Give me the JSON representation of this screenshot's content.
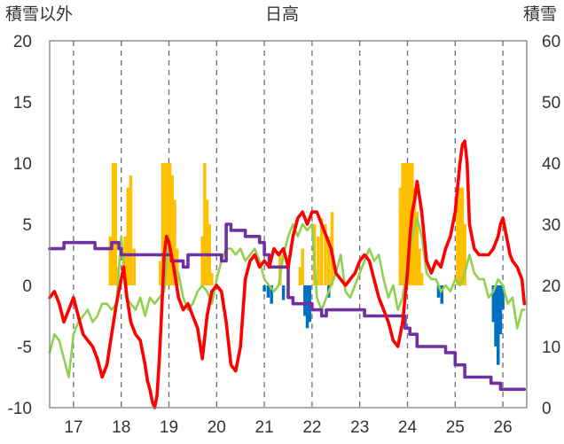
{
  "chart_data": {
    "type": "line",
    "title": "日高",
    "left_axis_label": "積雪以外",
    "right_axis_label": "積雪",
    "y_left": {
      "min": -10,
      "max": 20,
      "ticks": [
        20,
        15,
        10,
        5,
        0,
        -5,
        -10
      ]
    },
    "y_right": {
      "min": 0,
      "max": 60,
      "ticks": [
        60,
        50,
        40,
        30,
        20,
        10,
        0
      ]
    },
    "x": {
      "min": 16.5,
      "max": 26.5,
      "ticks": [
        17,
        18,
        19,
        20,
        21,
        22,
        23,
        24,
        25,
        26
      ]
    },
    "grid": {
      "vertical": "dashed",
      "horizontal": "none"
    },
    "colors": {
      "red": "#ff0000",
      "green": "#92d050",
      "purple": "#7030a0",
      "orange": "#ffc000",
      "blue": "#0070c0"
    },
    "series": [
      {
        "color": "red",
        "axis": "left",
        "x": [
          16.5,
          16.6,
          16.7,
          16.8,
          16.9,
          17.0,
          17.1,
          17.2,
          17.3,
          17.4,
          17.5,
          17.6,
          17.7,
          17.8,
          17.9,
          18.05,
          18.12,
          18.2,
          18.3,
          18.4,
          18.5,
          18.55,
          18.6,
          18.65,
          18.7,
          18.75,
          18.8,
          18.85,
          18.9,
          18.95,
          19.0,
          19.05,
          19.1,
          19.2,
          19.3,
          19.4,
          19.5,
          19.6,
          19.7,
          19.8,
          19.9,
          20.0,
          20.1,
          20.2,
          20.3,
          20.4,
          20.5,
          20.6,
          20.7,
          20.8,
          20.9,
          21.0,
          21.1,
          21.2,
          21.3,
          21.4,
          21.5,
          21.6,
          21.7,
          21.8,
          21.9,
          22.0,
          22.1,
          22.2,
          22.3,
          22.4,
          22.5,
          22.6,
          22.7,
          22.8,
          22.9,
          23.0,
          23.1,
          23.2,
          23.3,
          23.4,
          23.5,
          23.6,
          23.7,
          23.8,
          23.9,
          24.0,
          24.05,
          24.1,
          24.15,
          24.2,
          24.3,
          24.4,
          24.5,
          24.6,
          24.7,
          24.8,
          24.9,
          25.0,
          25.05,
          25.1,
          25.15,
          25.2,
          25.25,
          25.3,
          25.4,
          25.5,
          25.6,
          25.7,
          25.8,
          25.9,
          25.95,
          26.0,
          26.05,
          26.1,
          26.15,
          26.2,
          26.3,
          26.4,
          26.45
        ],
        "y": [
          -1.0,
          -0.5,
          -1.5,
          -3.0,
          -2.0,
          -1.0,
          -2.5,
          -4.0,
          -4.5,
          -5.0,
          -6.0,
          -7.5,
          -6.5,
          -4.0,
          -1.5,
          1.5,
          -1.0,
          -3.0,
          -4.0,
          -4.5,
          -6.5,
          -7.8,
          -8.5,
          -9.5,
          -10.0,
          -9.0,
          -6.0,
          -2.0,
          2.5,
          4.0,
          3.5,
          2.5,
          1.5,
          -1.0,
          -2.0,
          -1.5,
          -2.5,
          -3.5,
          -6.0,
          -2.5,
          -0.5,
          0.0,
          -0.5,
          -3.0,
          -6.5,
          -7.0,
          -5.0,
          0.5,
          2.0,
          2.5,
          1.5,
          2.0,
          1.5,
          3.0,
          2.5,
          3.0,
          1.5,
          4.0,
          5.5,
          6.0,
          5.0,
          6.0,
          6.0,
          5.0,
          4.0,
          3.0,
          1.0,
          0.5,
          0.0,
          0.5,
          1.0,
          2.0,
          2.5,
          2.0,
          0.5,
          -1.0,
          -2.0,
          -3.0,
          -4.5,
          -5.0,
          -3.0,
          1.0,
          4.0,
          6.0,
          7.0,
          8.5,
          6.0,
          2.0,
          1.0,
          2.0,
          1.5,
          3.0,
          4.0,
          6.0,
          8.0,
          10.0,
          11.5,
          11.8,
          10.0,
          5.0,
          3.0,
          2.5,
          2.5,
          2.5,
          3.0,
          4.0,
          5.0,
          5.5,
          4.5,
          3.5,
          2.5,
          2.0,
          1.5,
          0.5,
          -1.5
        ]
      },
      {
        "color": "green",
        "axis": "left",
        "x": [
          16.5,
          16.6,
          16.7,
          16.8,
          16.9,
          17.0,
          17.1,
          17.2,
          17.3,
          17.4,
          17.5,
          17.6,
          17.7,
          17.8,
          17.9,
          18.0,
          18.1,
          18.2,
          18.3,
          18.4,
          18.5,
          18.6,
          18.7,
          18.8,
          18.9,
          19.0,
          19.1,
          19.2,
          19.3,
          19.4,
          19.5,
          19.6,
          19.7,
          19.8,
          19.9,
          20.0,
          20.1,
          20.2,
          20.3,
          20.4,
          20.5,
          20.6,
          20.7,
          20.8,
          20.9,
          21.0,
          21.1,
          21.2,
          21.3,
          21.4,
          21.5,
          21.6,
          21.7,
          21.8,
          21.9,
          22.0,
          22.1,
          22.2,
          22.3,
          22.4,
          22.5,
          22.6,
          22.7,
          22.8,
          22.9,
          23.0,
          23.1,
          23.2,
          23.3,
          23.4,
          23.5,
          23.6,
          23.7,
          23.8,
          23.9,
          24.0,
          24.1,
          24.2,
          24.3,
          24.4,
          24.5,
          24.6,
          24.7,
          24.8,
          24.9,
          25.0,
          25.1,
          25.2,
          25.3,
          25.4,
          25.5,
          25.6,
          25.7,
          25.8,
          25.9,
          26.0,
          26.1,
          26.2,
          26.3,
          26.4,
          26.45
        ],
        "y": [
          -5.5,
          -4.0,
          -4.5,
          -6.0,
          -7.5,
          -4.0,
          -3.0,
          -2.5,
          -2.0,
          -3.0,
          -2.5,
          -1.5,
          -1.5,
          -2.0,
          -1.5,
          4.0,
          -1.0,
          -1.5,
          -2.0,
          -1.0,
          -2.5,
          -1.0,
          -1.5,
          -1.0,
          -0.5,
          4.0,
          1.5,
          1.0,
          -1.0,
          -2.0,
          -1.5,
          -0.5,
          0.0,
          -0.5,
          -1.5,
          0.5,
          2.0,
          3.0,
          3.0,
          2.5,
          3.0,
          2.0,
          2.5,
          3.0,
          2.0,
          0.5,
          0.0,
          -0.5,
          0.0,
          2.5,
          4.0,
          5.0,
          4.0,
          5.0,
          4.5,
          5.0,
          -1.0,
          -2.0,
          -1.0,
          0.0,
          1.0,
          2.5,
          -0.5,
          -1.0,
          0.0,
          1.0,
          2.0,
          3.0,
          2.0,
          2.5,
          0.5,
          -1.0,
          0.0,
          -2.0,
          -1.0,
          2.0,
          4.0,
          5.5,
          4.0,
          1.0,
          0.5,
          0.5,
          -0.5,
          0.0,
          -0.5,
          0.5,
          0.0,
          1.0,
          2.5,
          1.0,
          0.5,
          0.5,
          -1.0,
          -0.5,
          0.5,
          0.0,
          -1.5,
          -1.0,
          -3.5,
          -2.0,
          -2.0
        ]
      },
      {
        "color": "purple",
        "axis": "right",
        "x": [
          16.5,
          16.8,
          16.8,
          17.45,
          17.45,
          17.8,
          17.8,
          17.95,
          17.95,
          18.0,
          18.0,
          18.2,
          18.2,
          19.05,
          19.05,
          19.3,
          19.3,
          19.4,
          19.4,
          20.1,
          20.1,
          20.2,
          20.2,
          20.3,
          20.3,
          20.5,
          20.5,
          20.6,
          20.6,
          20.9,
          20.9,
          21.0,
          21.0,
          21.1,
          21.1,
          21.5,
          21.5,
          21.6,
          21.6,
          22.0,
          22.0,
          22.1,
          22.1,
          22.2,
          22.2,
          22.3,
          22.3,
          22.6,
          22.6,
          23.1,
          23.1,
          23.95,
          23.95,
          24.05,
          24.05,
          24.2,
          24.2,
          24.8,
          24.8,
          25.0,
          25.0,
          25.2,
          25.2,
          25.75,
          25.75,
          25.95,
          25.95,
          26.45
        ],
        "y": [
          26,
          26,
          27,
          27,
          26,
          26,
          27,
          27,
          26,
          26,
          25,
          25,
          25,
          25,
          24,
          24,
          23,
          23,
          25,
          25,
          24,
          24,
          30,
          30,
          29,
          29,
          29,
          29,
          28,
          28,
          27,
          27,
          25,
          25,
          23,
          23,
          18,
          18,
          17,
          17,
          16,
          16,
          16,
          16,
          15,
          15,
          16,
          16,
          16,
          16,
          15,
          15,
          13,
          13,
          12,
          12,
          10,
          10,
          9,
          9,
          7,
          7,
          5,
          5,
          4,
          4,
          3,
          3
        ]
      }
    ],
    "bars": [
      {
        "color": "orange",
        "axis": "left",
        "x": [
          17.77,
          17.83,
          17.88,
          17.93,
          18.08,
          18.14,
          18.2,
          18.27,
          18.82,
          18.87,
          18.92,
          18.97,
          19.02,
          19.07,
          19.12,
          19.17,
          19.7,
          19.75,
          19.8,
          19.85,
          19.9,
          21.33,
          21.75,
          21.8,
          22.05,
          22.13,
          22.2,
          22.28,
          22.35,
          22.42,
          23.85,
          23.9,
          23.95,
          24.0,
          24.05,
          24.1,
          24.15,
          24.2,
          24.25,
          24.3,
          25.05,
          25.1,
          25.15,
          25.2
        ],
        "values": [
          4,
          10,
          10,
          1.5,
          4,
          8,
          9,
          3,
          2,
          10,
          10,
          10,
          10,
          9,
          7,
          3,
          4,
          10,
          7,
          5,
          1,
          2.5,
          1.5,
          3,
          5,
          4,
          5.5,
          5,
          4,
          6,
          8,
          10,
          10,
          10,
          10,
          10,
          8,
          6,
          3,
          1,
          7,
          8,
          8,
          5
        ]
      },
      {
        "color": "blue",
        "axis": "left",
        "x": [
          21.0,
          21.08,
          21.15,
          21.4,
          21.85,
          21.9,
          21.95,
          22.35,
          24.65,
          24.72,
          25.8,
          25.85,
          25.9,
          25.95,
          26.0
        ],
        "values": [
          -0.5,
          -1.0,
          -1.5,
          -1.2,
          -2.5,
          -3.5,
          -3.0,
          -1.0,
          -1.0,
          -1.5,
          -3.0,
          -5.0,
          -6.5,
          -4.0,
          -2.0
        ]
      }
    ]
  }
}
